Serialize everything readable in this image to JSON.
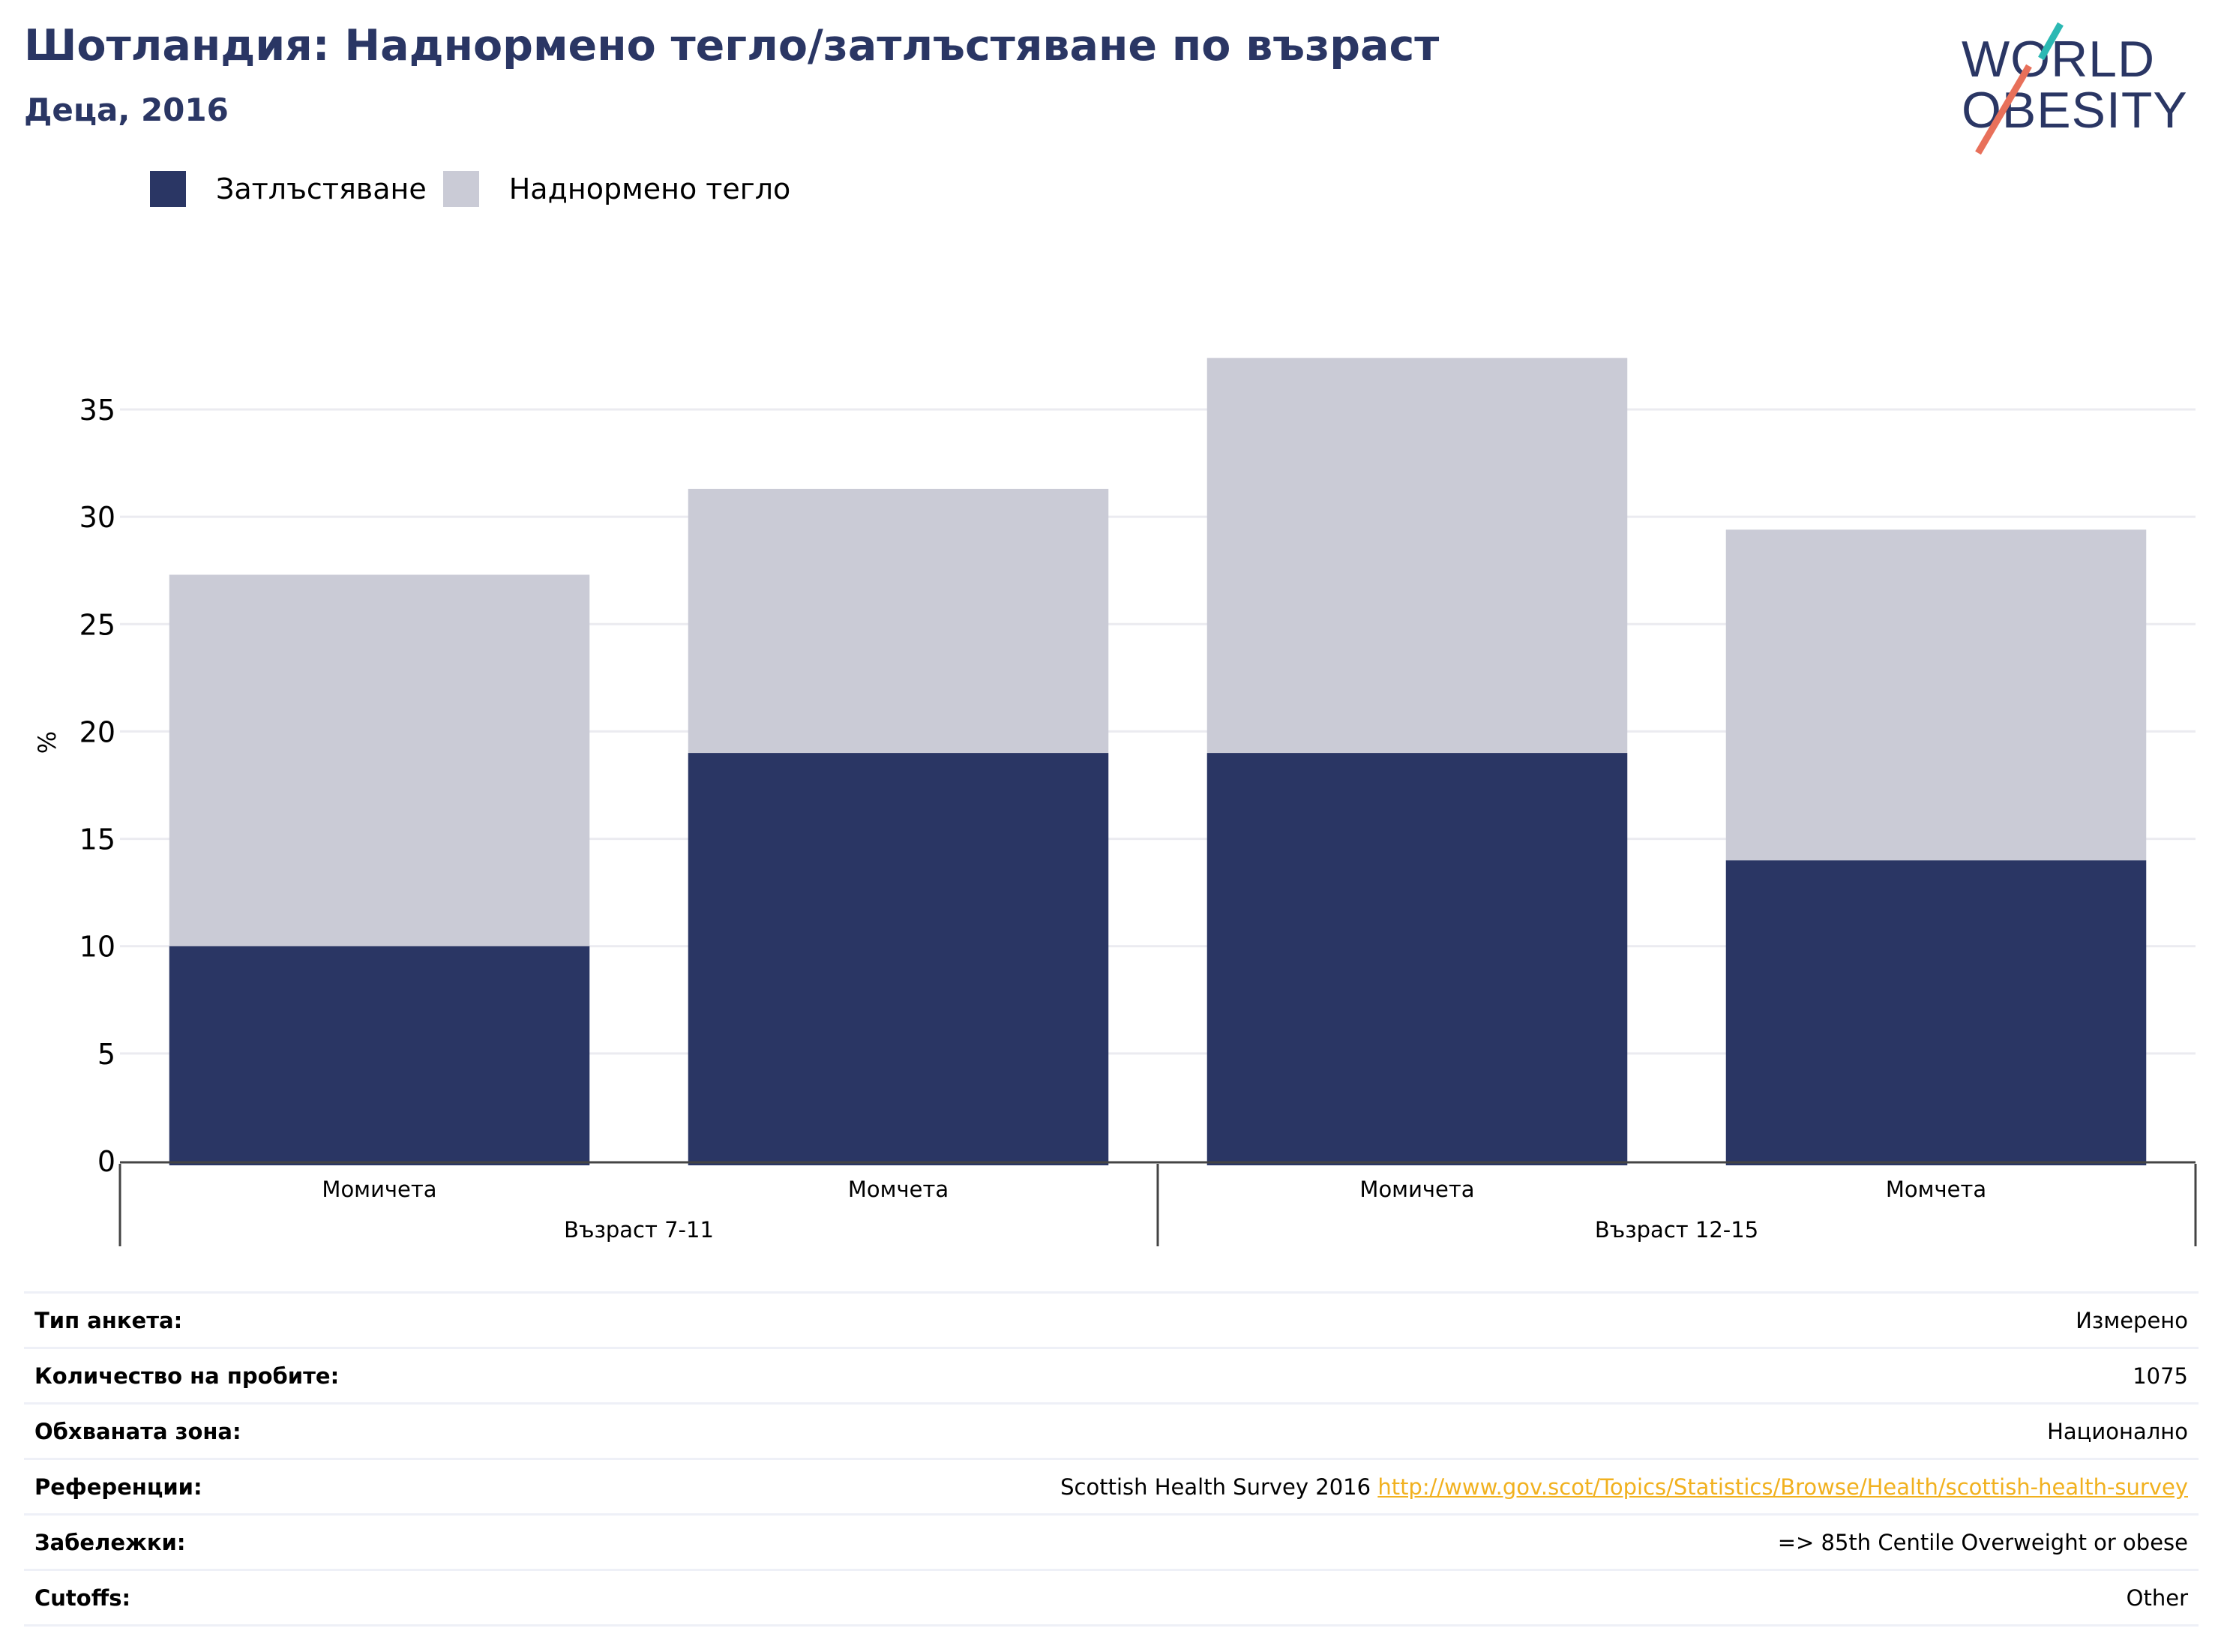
{
  "header": {
    "title": "Шотландия: Наднормено тегло/затлъстяване по възраст",
    "subtitle": "Деца, 2016",
    "logo_line1": "WORLD",
    "logo_line2": "OBESITY"
  },
  "colors": {
    "obesity": "#2a3664",
    "overweight": "#cacbd6",
    "accent_link": "#f1b11f",
    "logo_teal": "#2bb8b3",
    "logo_coral": "#e8705a"
  },
  "chart_data": {
    "type": "bar",
    "stacked": true,
    "ylabel": "%",
    "ylim": [
      0,
      37.5
    ],
    "yticks": [
      0,
      5,
      10,
      15,
      20,
      25,
      30,
      35
    ],
    "grid": true,
    "legend_position": "top-left",
    "categories": [
      "Момичета",
      "Момчета",
      "Момичета",
      "Момчета"
    ],
    "groups": [
      {
        "label": "Възраст 7-11",
        "span": [
          0,
          1
        ]
      },
      {
        "label": "Възраст 12-15",
        "span": [
          2,
          3
        ]
      }
    ],
    "series": [
      {
        "name": "Затлъстяване",
        "values": [
          10,
          19,
          19,
          14
        ]
      },
      {
        "name": "Наднормено тегло",
        "values": [
          17.3,
          12.3,
          18.4,
          15.4
        ]
      }
    ]
  },
  "info": [
    {
      "key": "Тип анкета:",
      "value": "Измерено"
    },
    {
      "key": "Количество на пробите:",
      "value": "1075"
    },
    {
      "key": "Обхваната зона:",
      "value": "Национално"
    },
    {
      "key": "Референции:",
      "value": "Scottish Health Survey 2016",
      "link": "http://www.gov.scot/Topics/Statistics/Browse/Health/scottish-health-survey"
    },
    {
      "key": "Забележки:",
      "value": "=> 85th Centile Overweight or obese"
    },
    {
      "key": "Cutoffs:",
      "value": "Other"
    }
  ]
}
